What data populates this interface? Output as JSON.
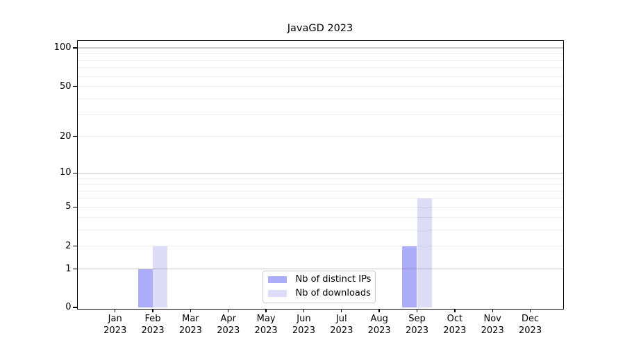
{
  "figure": {
    "background": "#ffffff"
  },
  "chart_data": {
    "type": "bar",
    "title": "JavaGD 2023",
    "categories": [
      "Jan",
      "Feb",
      "Mar",
      "Apr",
      "May",
      "Jun",
      "Jul",
      "Aug",
      "Sep",
      "Oct",
      "Nov",
      "Dec"
    ],
    "x_year_label": "2023",
    "series": [
      {
        "name": "Nb of distinct IPs",
        "color": "#acacf8",
        "values": [
          0,
          1,
          0,
          0,
          0,
          0,
          0,
          0,
          2,
          0,
          0,
          0
        ]
      },
      {
        "name": "Nb of downloads",
        "color": "#dcdcf8",
        "values": [
          0,
          2,
          0,
          0,
          0,
          0,
          0,
          0,
          6,
          0,
          0,
          0
        ]
      }
    ],
    "y_axis": {
      "scale": "log10(1+x)",
      "tick_values": [
        0,
        1,
        2,
        5,
        10,
        20,
        50,
        100
      ],
      "top_value": 114
    },
    "grid": {
      "major_values": [
        1,
        10,
        100
      ],
      "minor_values": [
        2,
        3,
        4,
        5,
        6,
        7,
        8,
        9,
        20,
        30,
        40,
        50,
        60,
        70,
        80,
        90
      ],
      "major_color": "rgba(0,0,0,0.21)",
      "minor_color": "rgba(0,0,0,0.075)"
    },
    "legend": {
      "position": "bottom-center"
    },
    "axis_color": "#000000",
    "text_color": "#000000"
  }
}
